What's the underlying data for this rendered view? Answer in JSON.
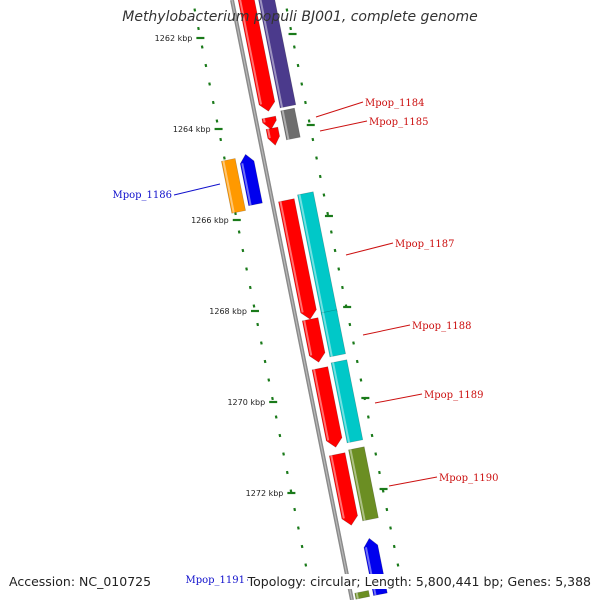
{
  "title": "Methylobacterium populi BJ001, complete genome",
  "footer": {
    "accession": "Accession: NC_010725",
    "summary": "Topology: circular; Length: 5,800,441 bp; Genes: 5,388"
  },
  "colors": {
    "backbone": "#8a8a8a",
    "tick": "#1a7a1a",
    "label_forward": "#cc1111",
    "label_reverse": "#1111cc",
    "cds": "#ff0000",
    "dark_purple": "#4b3a8c",
    "grey": "#6e6e6e",
    "orange": "#ff9900",
    "blue": "#0000ee",
    "cyan": "#00c8c8",
    "olive": "#6b8e23"
  },
  "scale": {
    "unit": "kbp",
    "labels": [
      "1262 kbp",
      "1264 kbp",
      "1266 kbp",
      "1268 kbp",
      "1270 kbp",
      "1272 kbp"
    ]
  },
  "genes": [
    {
      "name": "Mpop_1184",
      "strand": "forward"
    },
    {
      "name": "Mpop_1185",
      "strand": "forward"
    },
    {
      "name": "Mpop_1186",
      "strand": "reverse"
    },
    {
      "name": "Mpop_1187",
      "strand": "forward"
    },
    {
      "name": "Mpop_1188",
      "strand": "forward"
    },
    {
      "name": "Mpop_1189",
      "strand": "forward"
    },
    {
      "name": "Mpop_1190",
      "strand": "forward"
    },
    {
      "name": "Mpop_1191",
      "strand": "reverse"
    }
  ]
}
